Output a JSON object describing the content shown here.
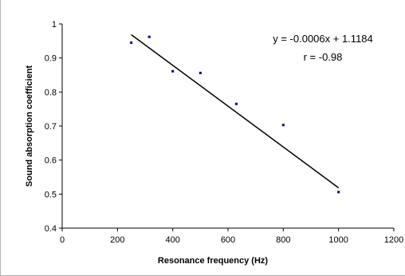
{
  "chart_data": {
    "type": "scatter",
    "title": "",
    "xlabel": "Resonance frequency (Hz)",
    "ylabel": "Sound absorption coefficient",
    "xlim": [
      0,
      1200
    ],
    "ylim": [
      0.4,
      1
    ],
    "x_ticks": [
      0,
      200,
      400,
      600,
      800,
      1000,
      1200
    ],
    "y_ticks": [
      0.4,
      0.5,
      0.6,
      0.7,
      0.8,
      0.9,
      1
    ],
    "x_tick_labels": [
      "0",
      "200",
      "400",
      "600",
      "800",
      "1000",
      "1200"
    ],
    "y_tick_labels": [
      "0.4",
      "0.5",
      "0.6",
      "0.7",
      "0.8",
      "0.9",
      "1"
    ],
    "grid": false,
    "series": [
      {
        "points": [
          {
            "x": 250,
            "y": 0.945
          },
          {
            "x": 315,
            "y": 0.962
          },
          {
            "x": 400,
            "y": 0.861
          },
          {
            "x": 500,
            "y": 0.856
          },
          {
            "x": 630,
            "y": 0.765
          },
          {
            "x": 800,
            "y": 0.703
          },
          {
            "x": 1000,
            "y": 0.506
          }
        ],
        "color": "#000080"
      }
    ],
    "trendline": {
      "slope": -0.0006,
      "intercept": 1.1184,
      "x_range": [
        250,
        1000
      ],
      "color": "#000000"
    },
    "annotations": {
      "equation": "y = -0.0006x + 1.1184",
      "r_value": "r = -0.98"
    }
  }
}
